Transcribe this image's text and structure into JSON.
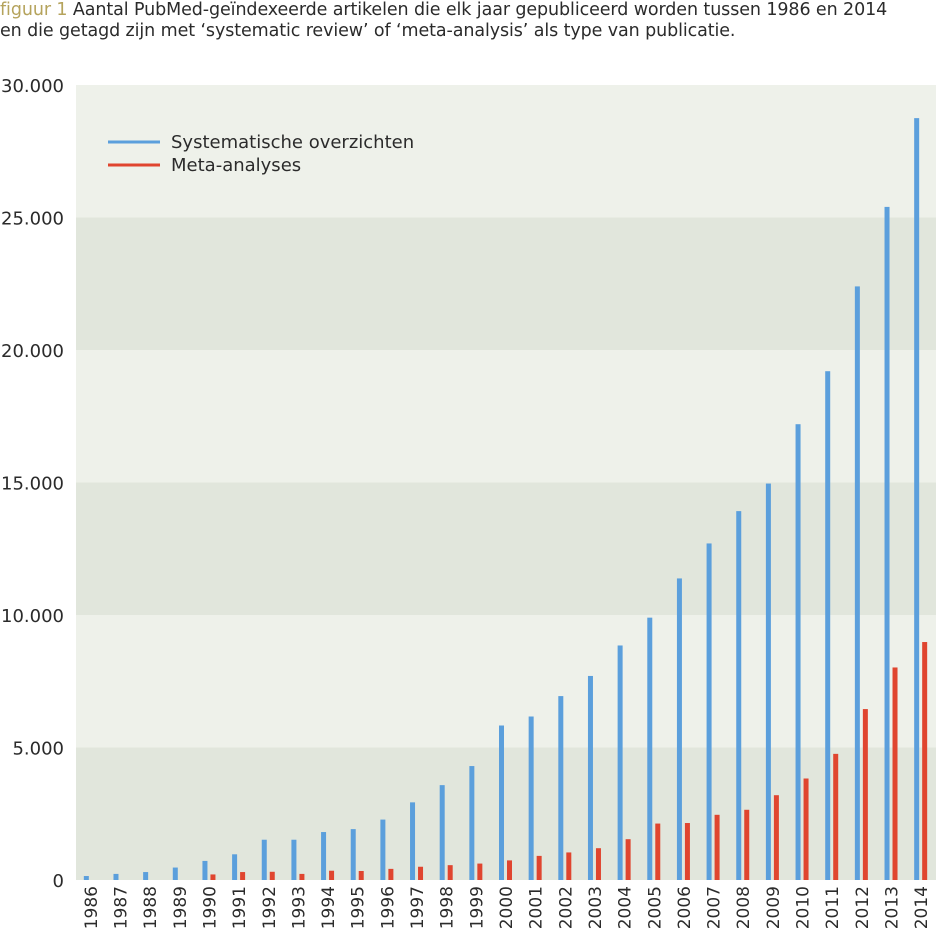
{
  "caption": {
    "label": "figuur 1",
    "line1": "Aantal PubMed-geïndexeerde artikelen die elk jaar gepubliceerd worden tussen 1986 en 2014",
    "line2": "en die getagd zijn met ‘systematic review’ of ‘meta-analysis’ als type van publicatie."
  },
  "chart_data": {
    "type": "bar",
    "categories": [
      "1986",
      "1987",
      "1988",
      "1989",
      "1990",
      "1991",
      "1992",
      "1993",
      "1994",
      "1995",
      "1996",
      "1997",
      "1998",
      "1999",
      "2000",
      "2001",
      "2002",
      "2003",
      "2004",
      "2005",
      "2006",
      "2007",
      "2008",
      "2009",
      "2010",
      "2011",
      "2012",
      "2013",
      "2014"
    ],
    "series": [
      {
        "name": "Systematische overzichten",
        "color": "#5b9fdc",
        "values": [
          150,
          230,
          300,
          470,
          720,
          970,
          1520,
          1520,
          1810,
          1920,
          2280,
          2930,
          3580,
          4300,
          5830,
          6170,
          6940,
          7700,
          8850,
          9900,
          11380,
          12700,
          13920,
          14960,
          17200,
          19200,
          22400,
          25400,
          28750
        ]
      },
      {
        "name": "Meta-analyses",
        "color": "#e0452f",
        "values": [
          0,
          0,
          0,
          0,
          210,
          300,
          310,
          230,
          350,
          340,
          420,
          500,
          560,
          620,
          740,
          910,
          1040,
          1200,
          1540,
          2130,
          2150,
          2460,
          2650,
          3200,
          3830,
          4760,
          6450,
          8020,
          8980
        ]
      }
    ],
    "ylim": [
      0,
      30000
    ],
    "yticks": [
      0,
      5000,
      10000,
      15000,
      20000,
      25000,
      30000
    ],
    "ytick_labels": [
      "0",
      "5.000",
      "10.000",
      "15.000",
      "20.000",
      "25.000",
      "30.000"
    ],
    "legend_position": "top-left",
    "band_colors": [
      "#e1e6dc",
      "#eef1ea"
    ]
  }
}
